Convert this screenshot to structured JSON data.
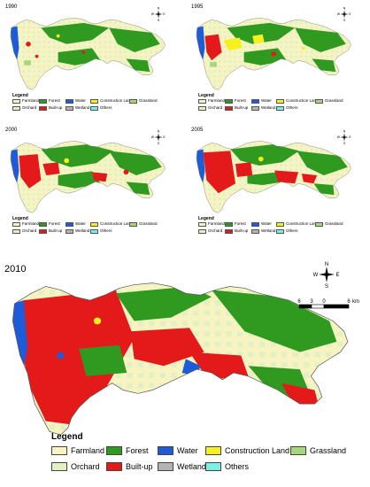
{
  "panels": [
    {
      "year": "1990"
    },
    {
      "year": "1995"
    },
    {
      "year": "2000"
    },
    {
      "year": "2005"
    },
    {
      "year": "2010"
    }
  ],
  "legend": {
    "title": "Legend",
    "row1": [
      {
        "label": "Farmland",
        "color": "#f7f4c2"
      },
      {
        "label": "Forest",
        "color": "#2f9a1f"
      },
      {
        "label": "Water",
        "color": "#1e5bd8"
      },
      {
        "label": "Construction Land",
        "color": "#f5f020"
      },
      {
        "label": "Grassland",
        "color": "#a3d97a"
      }
    ],
    "row2": [
      {
        "label": "Orchard",
        "color": "#e2f0c4"
      },
      {
        "label": "Built-up",
        "color": "#e41a1a"
      },
      {
        "label": "Wetland",
        "color": "#b4b4b4"
      },
      {
        "label": "Others",
        "color": "#7ff0e0"
      }
    ]
  },
  "compass": {
    "n": "N",
    "s": "S",
    "e": "E",
    "w": "W"
  },
  "scale": {
    "ticks": [
      "6",
      "3",
      "0",
      "6"
    ],
    "unit": "km"
  }
}
